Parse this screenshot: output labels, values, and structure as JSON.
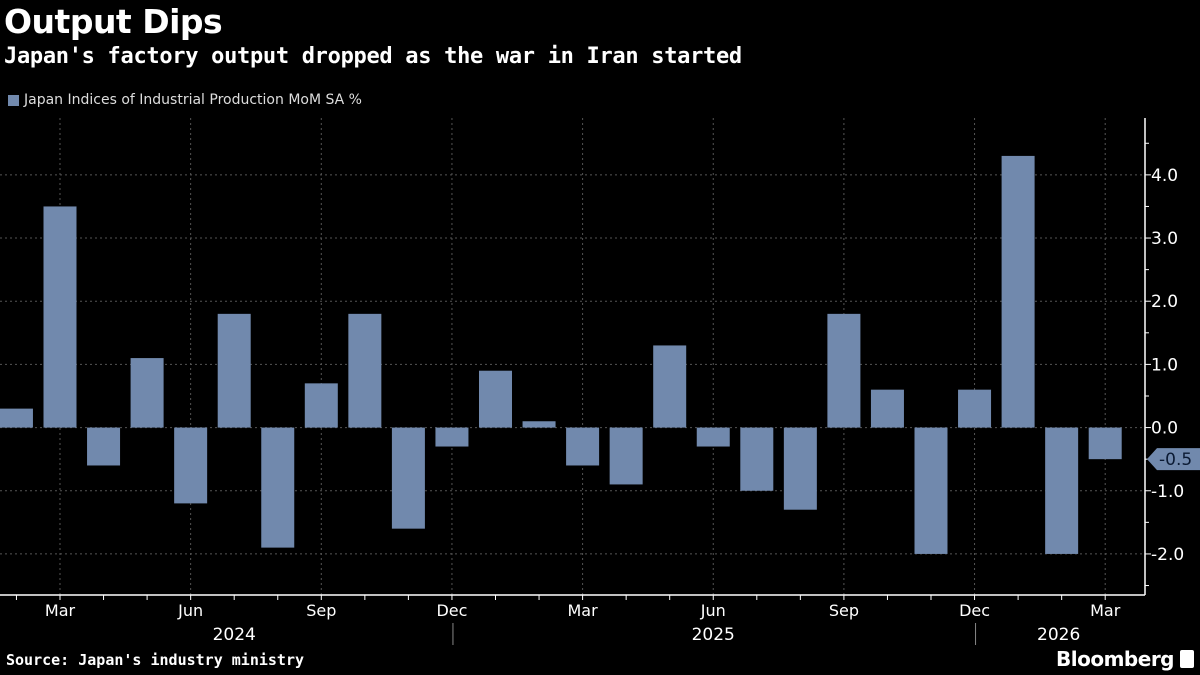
{
  "title": "Output Dips",
  "subtitle": "Japan's factory output dropped as the war in Iran started",
  "source": "Source: Japan's industry ministry",
  "brand": "Bloomberg",
  "chart_data": {
    "type": "bar",
    "title": "Output Dips",
    "subtitle": "Japan's factory output dropped as the war in Iran started",
    "series": [
      {
        "name": "Japan Indices of Industrial Production MoM SA %",
        "color": "#7189ad",
        "values": [
          0.3,
          3.5,
          -0.6,
          1.1,
          -1.2,
          1.8,
          -1.9,
          0.7,
          1.8,
          -1.6,
          -0.3,
          0.9,
          0.1,
          -0.6,
          -0.9,
          1.3,
          -0.3,
          -1.0,
          -1.3,
          1.8,
          0.6,
          -2.0,
          0.6,
          4.3,
          -2.0,
          -0.5
        ]
      }
    ],
    "categories": [
      "2024-02",
      "2024-03",
      "2024-04",
      "2024-05",
      "2024-06",
      "2024-07",
      "2024-08",
      "2024-09",
      "2024-10",
      "2024-11",
      "2024-12",
      "2025-01",
      "2025-02",
      "2025-03",
      "2025-04",
      "2025-05",
      "2025-06",
      "2025-07",
      "2025-08",
      "2025-09",
      "2025-10",
      "2025-11",
      "2025-12",
      "2026-01",
      "2026-02",
      "2026-03"
    ],
    "x_tick_labels": [
      {
        "month": "2024-03",
        "label": "Mar"
      },
      {
        "month": "2024-06",
        "label": "Jun"
      },
      {
        "month": "2024-09",
        "label": "Sep"
      },
      {
        "month": "2024-12",
        "label": "Dec"
      },
      {
        "month": "2025-03",
        "label": "Mar"
      },
      {
        "month": "2025-06",
        "label": "Jun"
      },
      {
        "month": "2025-09",
        "label": "Sep"
      },
      {
        "month": "2025-12",
        "label": "Dec"
      },
      {
        "month": "2026-03",
        "label": "Mar"
      }
    ],
    "year_labels": [
      "2024",
      "2025",
      "2026"
    ],
    "y_ticks": [
      "4.0",
      "3.0",
      "2.0",
      "1.0",
      "0.0",
      "-1.0",
      "-2.0"
    ],
    "y_tick_values": [
      4,
      3,
      2,
      1,
      0,
      -1,
      -2
    ],
    "ylim": [
      -2.65,
      4.9
    ],
    "y_axis_position": "right",
    "last_value_label": "-0.5",
    "grid": true,
    "legend_position": "top-left",
    "xlabel": "",
    "ylabel": ""
  }
}
